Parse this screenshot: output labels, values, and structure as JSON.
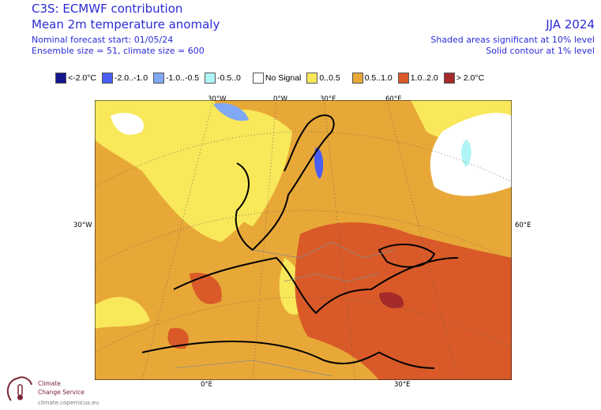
{
  "header": {
    "title": "C3S: ECMWF contribution",
    "subtitle": "Mean 2m temperature anomaly",
    "forecast_start": "Nominal forecast start: 01/05/24",
    "ensemble": "Ensemble size = 51, climate size = 600",
    "season": "JJA 2024",
    "significance_shaded": "Shaded areas significant at 10% level",
    "significance_contour": "Solid contour at 1% level"
  },
  "legend": [
    {
      "label": "<-2.0°C",
      "color": "#14168c"
    },
    {
      "label": "-2.0..-1.0",
      "color": "#4a5ef2"
    },
    {
      "label": "-1.0..-0.5",
      "color": "#80a8f5"
    },
    {
      "label": "-0.5..0",
      "color": "#b0f5f5"
    },
    {
      "label": "No Signal",
      "color": "#ffffff"
    },
    {
      "label": "0..0.5",
      "color": "#f8e85a"
    },
    {
      "label": "0.5..1.0",
      "color": "#e8a838"
    },
    {
      "label": "1.0..2.0",
      "color": "#d95a28"
    },
    {
      "label": "> 2.0°C",
      "color": "#a52a2a"
    }
  ],
  "axis_labels": {
    "top": [
      "30°W",
      "0°W",
      "30°E",
      "60°E"
    ],
    "left": "30°W",
    "right": "60°E",
    "bottom": [
      "0°E",
      "30°E"
    ]
  },
  "logo": {
    "line1": "Climate",
    "line2": "Change Service",
    "url": "climate.copernicus.eu"
  }
}
